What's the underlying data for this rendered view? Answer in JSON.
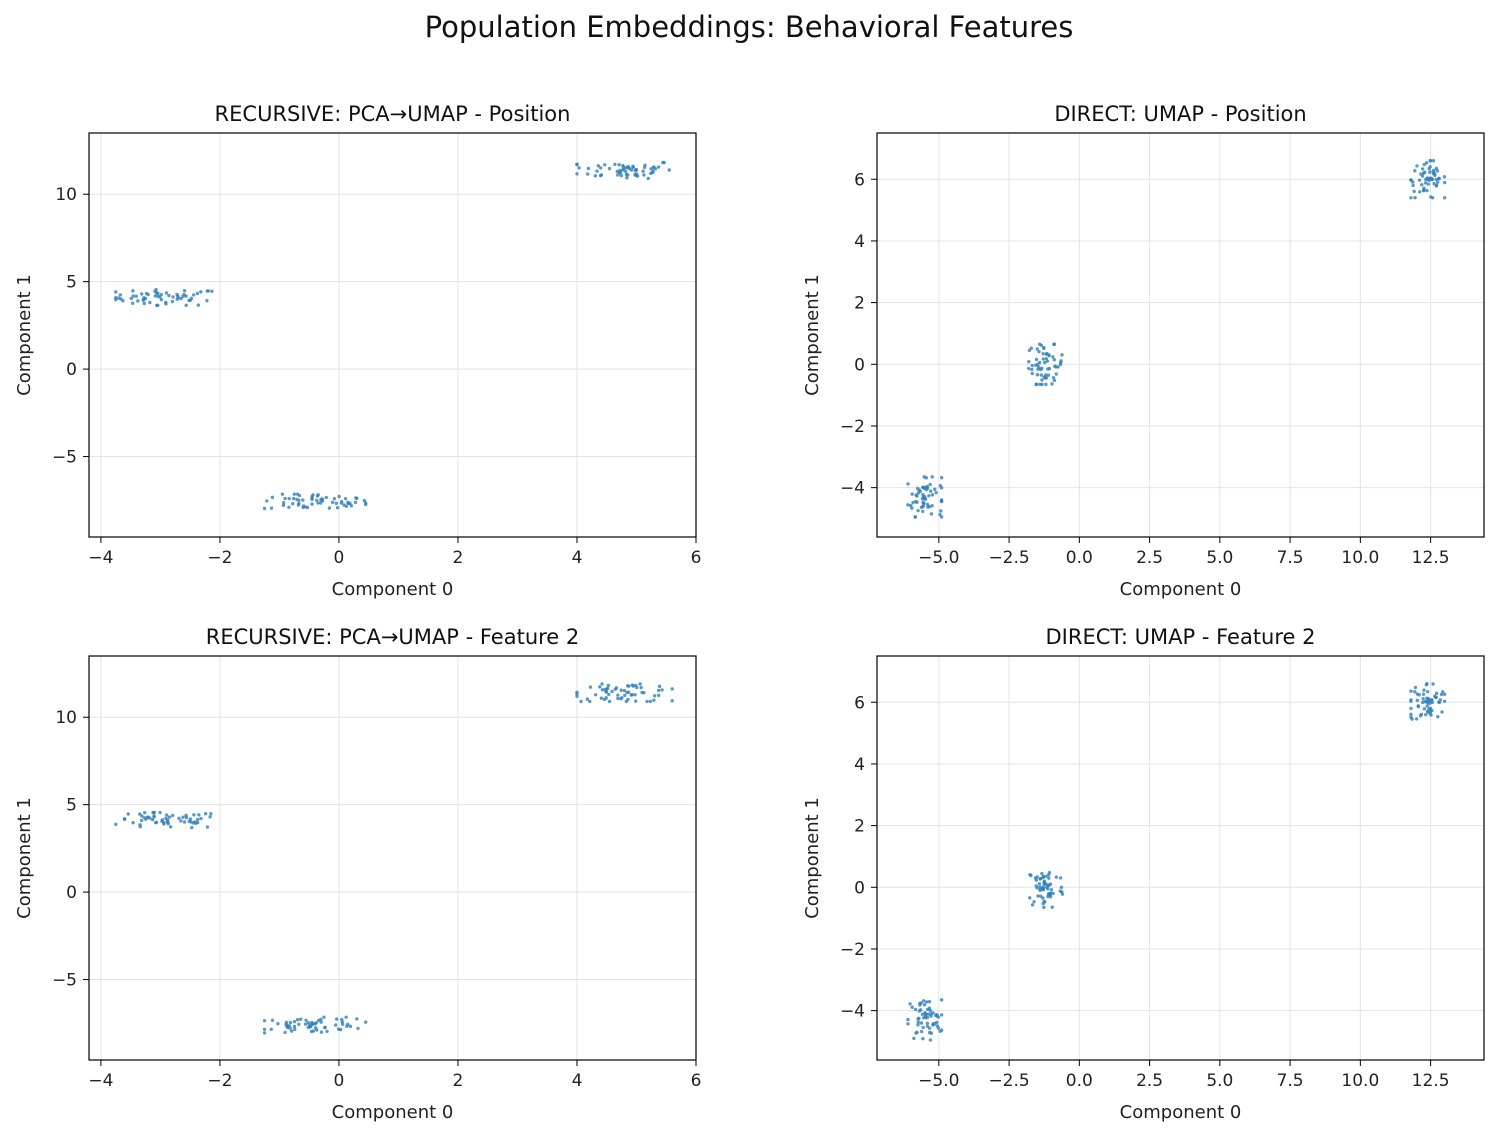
{
  "figure": {
    "title": "Population Embeddings: Behavioral Features",
    "point_color": "#2f7fb8",
    "grid_color": "#e3e3e3"
  },
  "chart_data": [
    {
      "type": "scatter",
      "title": "RECURSIVE: PCA→UMAP - Position",
      "xlabel": "Component 0",
      "ylabel": "Component 1",
      "xlim": [
        -4.2,
        6.0
      ],
      "ylim": [
        -9.6,
        13.5
      ],
      "xticks": [
        -4,
        -2,
        0,
        2,
        4,
        6
      ],
      "xtick_labels": [
        "−4",
        "−2",
        "0",
        "2",
        "4",
        "6"
      ],
      "yticks": [
        -5,
        0,
        5,
        10
      ],
      "ytick_labels": [
        "−5",
        "0",
        "5",
        "10"
      ],
      "grid": true,
      "clusters": [
        {
          "center": [
            -2.9,
            4.1
          ],
          "spread": [
            0.85,
            0.45
          ],
          "n": 60
        },
        {
          "center": [
            -0.4,
            -7.6
          ],
          "spread": [
            0.85,
            0.45
          ],
          "n": 60
        },
        {
          "center": [
            4.8,
            11.4
          ],
          "spread": [
            0.8,
            0.5
          ],
          "n": 60
        }
      ]
    },
    {
      "type": "scatter",
      "title": "DIRECT: UMAP - Position",
      "xlabel": "Component 0",
      "ylabel": "Component 1",
      "xlim": [
        -7.2,
        14.4
      ],
      "ylim": [
        -5.6,
        7.5
      ],
      "xticks": [
        -5,
        -2.5,
        0,
        2.5,
        5,
        7.5,
        10,
        12.5
      ],
      "xtick_labels": [
        "−5.0",
        "−2.5",
        "0.0",
        "2.5",
        "5.0",
        "7.5",
        "10.0",
        "12.5"
      ],
      "yticks": [
        -4,
        -2,
        0,
        2,
        4,
        6
      ],
      "ytick_labels": [
        "−4",
        "−2",
        "0",
        "2",
        "4",
        "6"
      ],
      "grid": true,
      "clusters": [
        {
          "center": [
            -5.5,
            -4.3
          ],
          "spread": [
            0.6,
            0.65
          ],
          "n": 60
        },
        {
          "center": [
            -1.2,
            0.0
          ],
          "spread": [
            0.6,
            0.65
          ],
          "n": 60
        },
        {
          "center": [
            12.4,
            6.0
          ],
          "spread": [
            0.6,
            0.6
          ],
          "n": 60
        }
      ]
    },
    {
      "type": "scatter",
      "title": "RECURSIVE: PCA→UMAP - Feature 2",
      "xlabel": "Component 0",
      "ylabel": "Component 1",
      "xlim": [
        -4.2,
        6.0
      ],
      "ylim": [
        -9.6,
        13.5
      ],
      "xticks": [
        -4,
        -2,
        0,
        2,
        4,
        6
      ],
      "xtick_labels": [
        "−4",
        "−2",
        "0",
        "2",
        "4",
        "6"
      ],
      "yticks": [
        -5,
        0,
        5,
        10
      ],
      "ytick_labels": [
        "−5",
        "0",
        "5",
        "10"
      ],
      "grid": true,
      "clusters": [
        {
          "center": [
            -2.9,
            4.1
          ],
          "spread": [
            0.85,
            0.45
          ],
          "n": 60
        },
        {
          "center": [
            -0.4,
            -7.6
          ],
          "spread": [
            0.85,
            0.45
          ],
          "n": 60
        },
        {
          "center": [
            4.8,
            11.4
          ],
          "spread": [
            0.8,
            0.5
          ],
          "n": 60
        }
      ]
    },
    {
      "type": "scatter",
      "title": "DIRECT: UMAP - Feature 2",
      "xlabel": "Component 0",
      "ylabel": "Component 1",
      "xlim": [
        -7.2,
        14.4
      ],
      "ylim": [
        -5.6,
        7.5
      ],
      "xticks": [
        -5,
        -2.5,
        0,
        2.5,
        5,
        7.5,
        10,
        12.5
      ],
      "xtick_labels": [
        "−5.0",
        "−2.5",
        "0.0",
        "2.5",
        "5.0",
        "7.5",
        "10.0",
        "12.5"
      ],
      "yticks": [
        -4,
        -2,
        0,
        2,
        4,
        6
      ],
      "ytick_labels": [
        "−4",
        "−2",
        "0",
        "2",
        "4",
        "6"
      ],
      "grid": true,
      "clusters": [
        {
          "center": [
            -5.5,
            -4.3
          ],
          "spread": [
            0.6,
            0.65
          ],
          "n": 60
        },
        {
          "center": [
            -1.2,
            0.0
          ],
          "spread": [
            0.6,
            0.65
          ],
          "n": 60
        },
        {
          "center": [
            12.4,
            6.0
          ],
          "spread": [
            0.6,
            0.6
          ],
          "n": 60
        }
      ]
    }
  ]
}
